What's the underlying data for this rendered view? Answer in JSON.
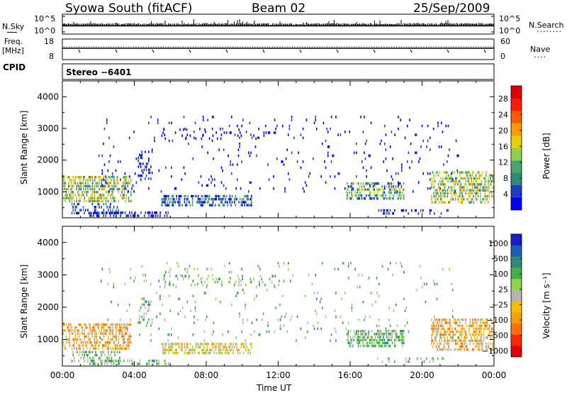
{
  "header": {
    "radar": "Syowa South (fitACF)",
    "beam": "Beam 02",
    "date": "25/Sep/2009"
  },
  "strip_nsky": {
    "left_label": "N.Sky",
    "ticks_left": [
      "10^5",
      "10^0"
    ],
    "ticks_right": [
      "10^5",
      "10^0"
    ],
    "right_label": "N.Search",
    "right_dots": "········"
  },
  "strip_freq": {
    "left_label_1": "Freq.",
    "left_label_2": "[MHz]",
    "ticks_left": [
      "18",
      "8"
    ],
    "ticks_right": [
      "60",
      "0"
    ],
    "right_label": "Nave",
    "right_dots": "····",
    "cpid_label": "CPID",
    "cpid_value": "Stereo −6401"
  },
  "colors": {
    "power": [
      "#0000ff",
      "#1a3ec8",
      "#2f8a7a",
      "#4aa66a",
      "#8fd14f",
      "#e8d000",
      "#ff9a00",
      "#ff5a00",
      "#ff1a00",
      "#e00000"
    ],
    "velocity": [
      "#1c1cd0",
      "#1860b8",
      "#2f8a7a",
      "#44b04a",
      "#8ed34a",
      "#b4b4b4",
      "#f0c000",
      "#ffa000",
      "#ff7000",
      "#ff2a00",
      "#e00000"
    ]
  },
  "chart_data": [
    {
      "type": "heatmap",
      "title": "",
      "xlabel": "Time UT",
      "ylabel": "Slant Range [km]",
      "xlim": [
        "00:00",
        "24:00"
      ],
      "ylim": [
        180,
        4500
      ],
      "xticks": [
        "00:00",
        "04:00",
        "08:00",
        "12:00",
        "16:00",
        "20:00",
        "00:00"
      ],
      "yticks": [
        1000,
        2000,
        3000,
        4000
      ],
      "colorbar": {
        "label": "Power [dB]",
        "ticks": [
          "4",
          "8",
          "12",
          "16",
          "20",
          "24",
          "28"
        ]
      }
    },
    {
      "type": "heatmap",
      "title": "",
      "xlabel": "Time UT",
      "ylabel": "Slant Range [km]",
      "xlim": [
        "00:00",
        "24:00"
      ],
      "ylim": [
        180,
        4500
      ],
      "xticks": [
        "00:00",
        "04:00",
        "08:00",
        "12:00",
        "16:00",
        "20:00",
        "00:00"
      ],
      "yticks": [
        1000,
        2000,
        3000,
        4000
      ],
      "colorbar": {
        "label": "Velocity [m s⁻¹]",
        "ticks": [
          "1000",
          "500",
          "100",
          "25",
          "−25",
          "−100",
          "−500",
          "−1000"
        ]
      }
    }
  ]
}
